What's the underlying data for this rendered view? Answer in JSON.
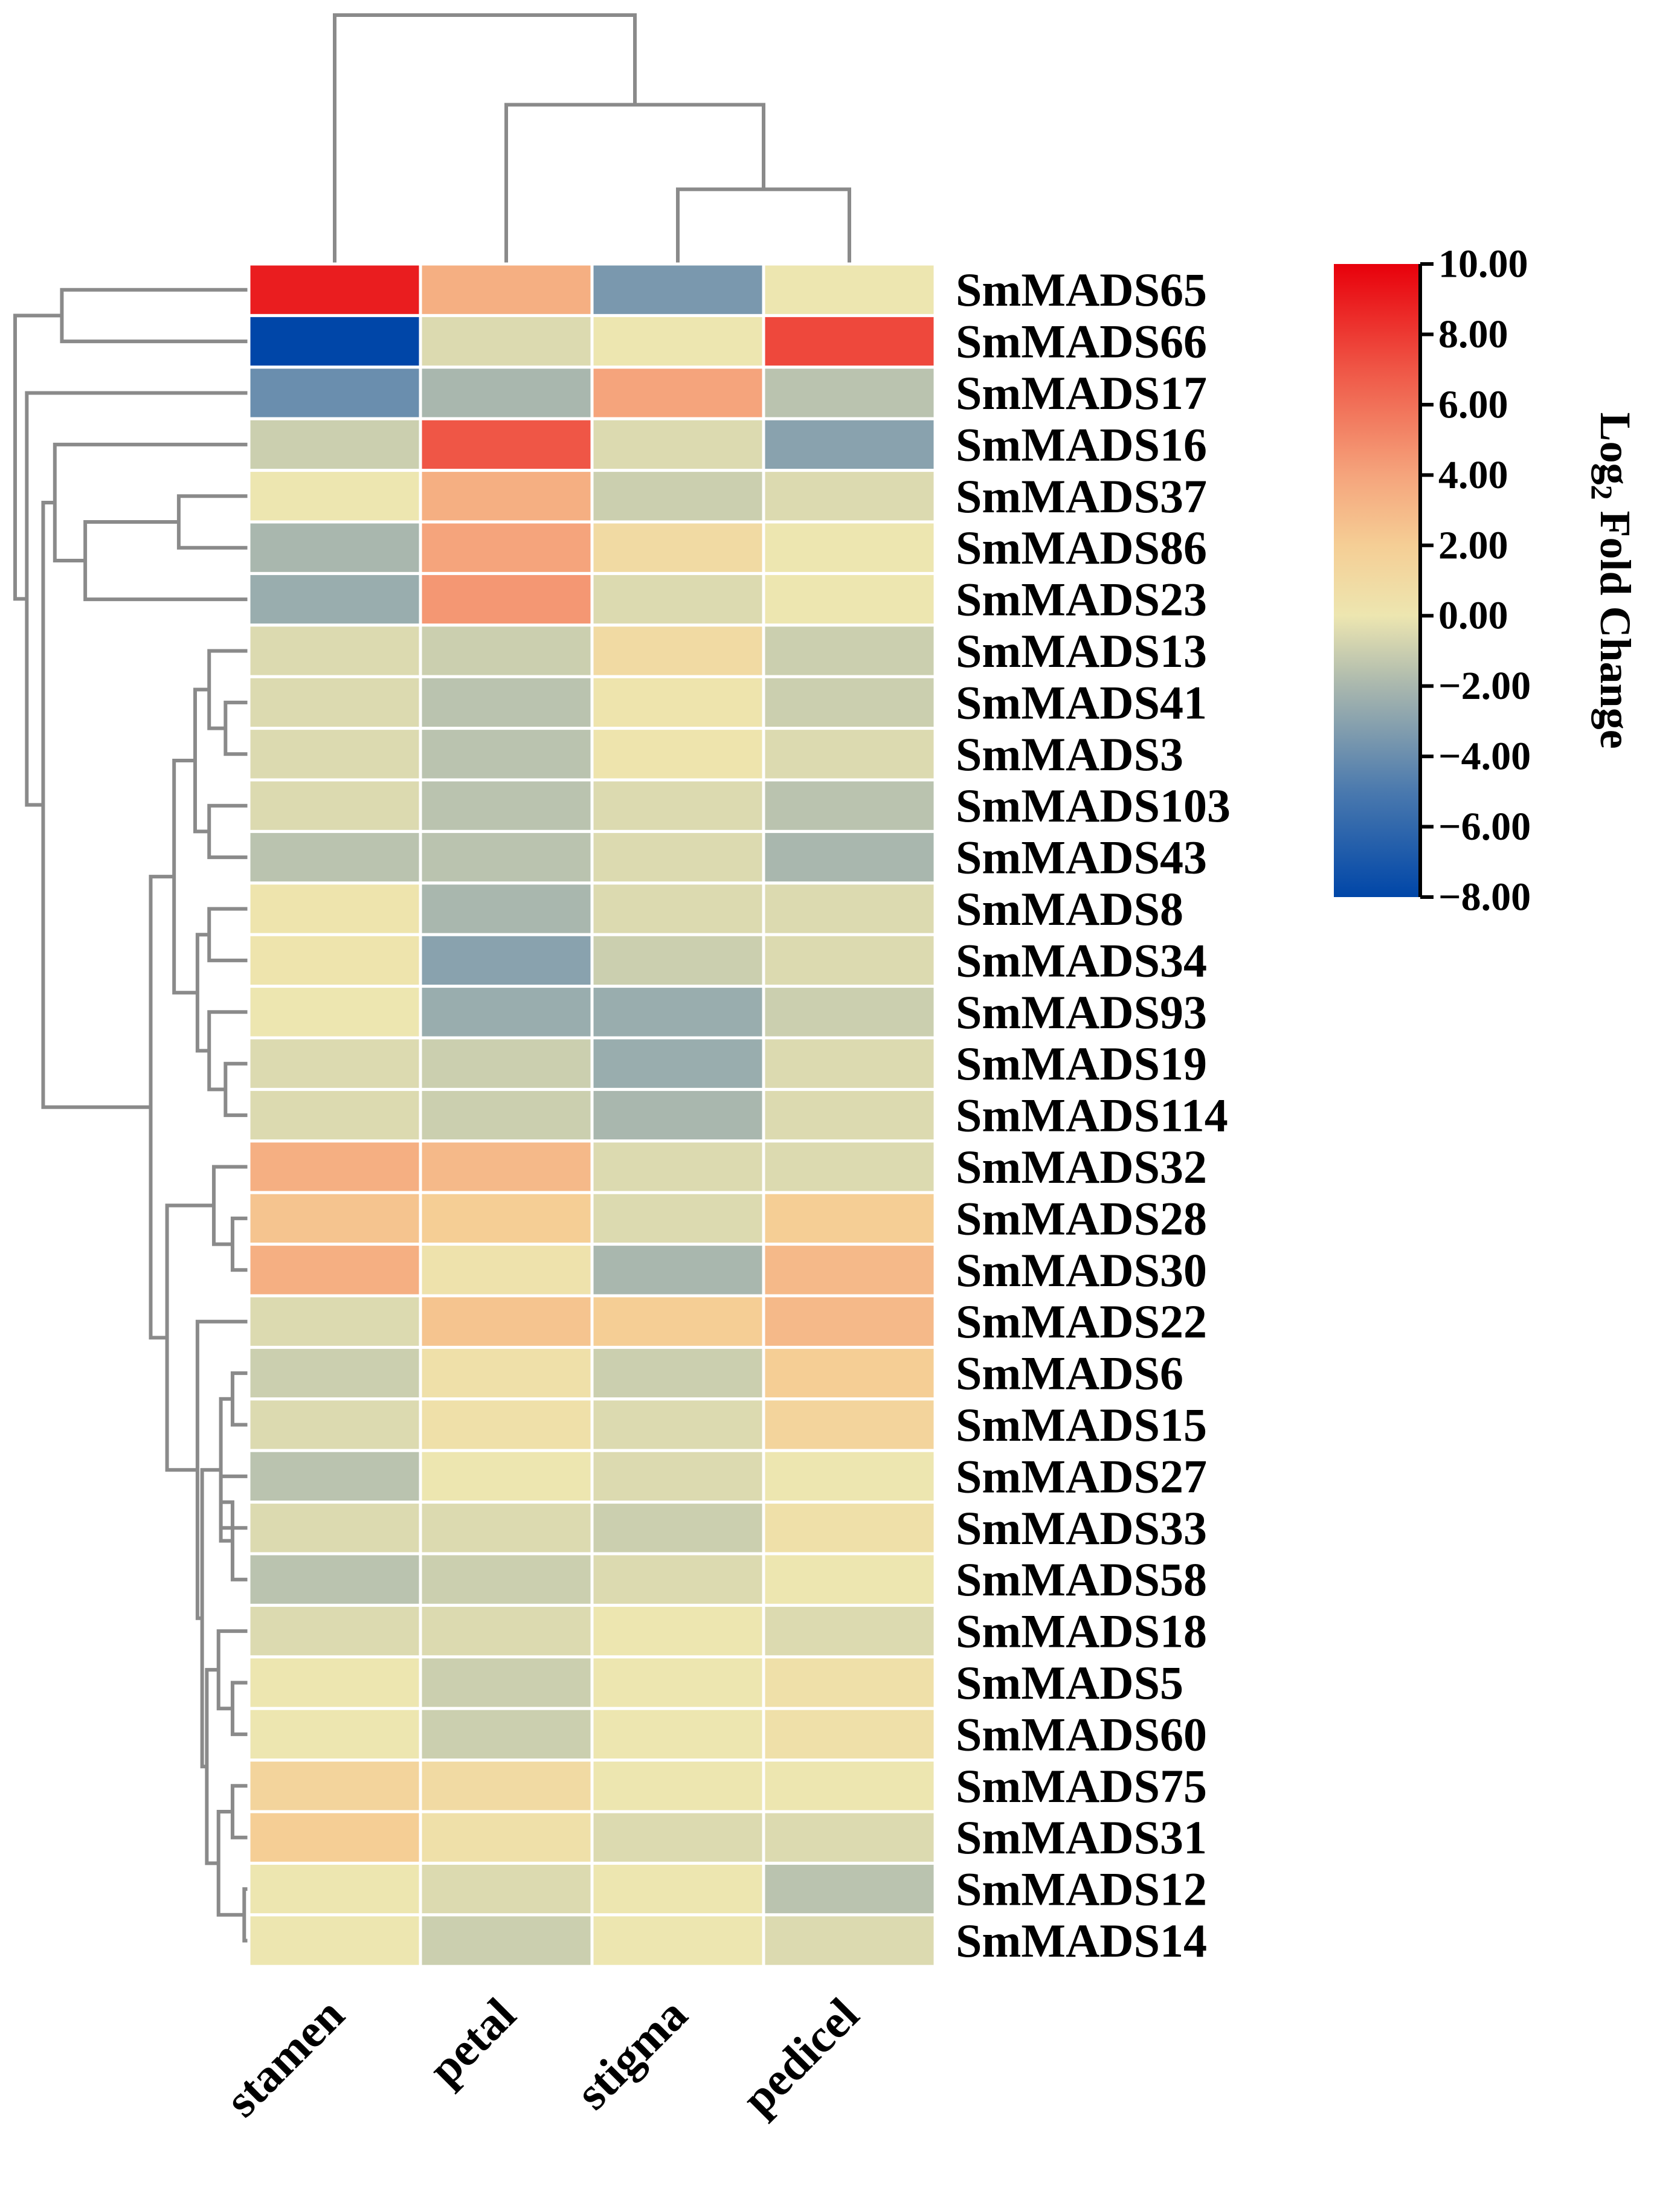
{
  "chart_data": {
    "type": "heatmap",
    "title": "",
    "colorbar": {
      "label": "Log",
      "label_subscript": "2",
      "label_suffix": " Fold Change",
      "min": -8.0,
      "max": 10.0,
      "ticks": [
        "10.00",
        "8.00",
        "6.00",
        "4.00",
        "2.00",
        "0.00",
        "−2.00",
        "−4.00",
        "−6.00",
        "−8.00"
      ],
      "tick_values": [
        10,
        8,
        6,
        4,
        2,
        0,
        -2,
        -4,
        -6,
        -8
      ],
      "stops": [
        {
          "v": -8,
          "c": "#0046a8"
        },
        {
          "v": -5,
          "c": "#4a79ae"
        },
        {
          "v": -2,
          "c": "#a9b7ae"
        },
        {
          "v": 0,
          "c": "#ede6b0"
        },
        {
          "v": 2,
          "c": "#f5ce95"
        },
        {
          "v": 4,
          "c": "#f5a47c"
        },
        {
          "v": 7,
          "c": "#ef5646"
        },
        {
          "v": 10,
          "c": "#e8000b"
        }
      ]
    },
    "columns": [
      "stamen",
      "petal",
      "stigma",
      "pedicel"
    ],
    "rows": [
      "SmMADS65",
      "SmMADS66",
      "SmMADS17",
      "SmMADS16",
      "SmMADS37",
      "SmMADS86",
      "SmMADS23",
      "SmMADS13",
      "SmMADS41",
      "SmMADS3",
      "SmMADS103",
      "SmMADS43",
      "SmMADS8",
      "SmMADS34",
      "SmMADS93",
      "SmMADS19",
      "SmMADS114",
      "SmMADS32",
      "SmMADS28",
      "SmMADS30",
      "SmMADS22",
      "SmMADS6",
      "SmMADS15",
      "SmMADS27",
      "SmMADS33",
      "SmMADS58",
      "SmMADS18",
      "SmMADS5",
      "SmMADS60",
      "SmMADS75",
      "SmMADS31",
      "SmMADS12",
      "SmMADS14"
    ],
    "values": [
      [
        9.0,
        3.5,
        -3.5,
        0.0
      ],
      [
        -8.0,
        -0.5,
        0.0,
        7.5
      ],
      [
        -4.0,
        -2.0,
        4.0,
        -1.5
      ],
      [
        -1.0,
        7.0,
        -0.5,
        -3.0
      ],
      [
        0.0,
        3.5,
        -1.0,
        -0.5
      ],
      [
        -2.0,
        4.0,
        1.0,
        0.0
      ],
      [
        -2.5,
        4.5,
        -0.5,
        0.0
      ],
      [
        -0.5,
        -1.0,
        1.0,
        -1.0
      ],
      [
        -0.5,
        -1.5,
        0.2,
        -1.0
      ],
      [
        -0.5,
        -1.5,
        0.2,
        -0.5
      ],
      [
        -0.5,
        -1.5,
        -0.5,
        -1.5
      ],
      [
        -1.5,
        -1.5,
        -0.5,
        -2.0
      ],
      [
        0.2,
        -2.0,
        -0.5,
        -0.5
      ],
      [
        0.2,
        -3.0,
        -1.0,
        -0.5
      ],
      [
        0.0,
        -2.5,
        -2.5,
        -1.0
      ],
      [
        -0.5,
        -1.0,
        -2.5,
        -0.5
      ],
      [
        -0.5,
        -1.0,
        -2.0,
        -0.5
      ],
      [
        3.5,
        3.0,
        -0.5,
        -0.5
      ],
      [
        2.5,
        2.0,
        -0.5,
        2.0
      ],
      [
        3.5,
        0.3,
        -2.0,
        3.0
      ],
      [
        -0.5,
        2.5,
        2.0,
        3.0
      ],
      [
        -1.0,
        0.5,
        -1.0,
        2.0
      ],
      [
        -0.5,
        0.5,
        -0.5,
        1.5
      ],
      [
        -1.5,
        0.0,
        -0.5,
        0.0
      ],
      [
        -0.5,
        -0.5,
        -1.0,
        0.5
      ],
      [
        -1.5,
        -1.0,
        -0.5,
        0.0
      ],
      [
        -0.5,
        -0.5,
        0.0,
        -0.5
      ],
      [
        0.0,
        -1.0,
        0.0,
        0.5
      ],
      [
        0.0,
        -1.0,
        0.0,
        0.5
      ],
      [
        1.5,
        1.0,
        0.0,
        0.0
      ],
      [
        2.0,
        0.5,
        -0.5,
        -0.5
      ],
      [
        0.0,
        -0.5,
        0.0,
        -1.5
      ],
      [
        0.0,
        -1.0,
        0.0,
        -0.5
      ]
    ],
    "row_dendrogram": [
      {
        "a": 0,
        "b": 1,
        "h": 0.8
      },
      {
        "a": 4,
        "b": 5,
        "h": 0.3
      },
      {
        "a": 34,
        "b": 6,
        "h": 0.7
      },
      {
        "a": 3,
        "b": 35,
        "h": 0.83
      },
      {
        "a": 8,
        "b": 9,
        "h": 0.1
      },
      {
        "a": 7,
        "b": 37,
        "h": 0.17
      },
      {
        "a": 10,
        "b": 11,
        "h": 0.17
      },
      {
        "a": 38,
        "b": 39,
        "h": 0.23
      },
      {
        "a": 12,
        "b": 13,
        "h": 0.17
      },
      {
        "a": 15,
        "b": 16,
        "h": 0.1
      },
      {
        "a": 14,
        "b": 42,
        "h": 0.17
      },
      {
        "a": 41,
        "b": 43,
        "h": 0.22
      },
      {
        "a": 40,
        "b": 44,
        "h": 0.32
      },
      {
        "a": 18,
        "b": 19,
        "h": 0.07
      },
      {
        "a": 17,
        "b": 46,
        "h": 0.15
      },
      {
        "a": 21,
        "b": 22,
        "h": 0.07
      },
      {
        "a": 23,
        "b": 24,
        "h": 0.12
      },
      {
        "a": 49,
        "b": 25,
        "h": 0.07
      },
      {
        "a": 48,
        "b": 50,
        "h": 0.12
      },
      {
        "a": 27,
        "b": 28,
        "h": 0.07
      },
      {
        "a": 26,
        "b": 52,
        "h": 0.13
      },
      {
        "a": 29,
        "b": 30,
        "h": 0.07
      },
      {
        "a": 31,
        "b": 32,
        "h": 0.02
      },
      {
        "a": 54,
        "b": 55,
        "h": 0.13
      },
      {
        "a": 53,
        "b": 56,
        "h": 0.18
      },
      {
        "a": 51,
        "b": 57,
        "h": 0.2
      },
      {
        "a": 20,
        "b": 58,
        "h": 0.22
      },
      {
        "a": 47,
        "b": 59,
        "h": 0.35
      },
      {
        "a": 45,
        "b": 60,
        "h": 0.42
      },
      {
        "a": 36,
        "b": 61,
        "h": 0.88
      },
      {
        "a": 2,
        "b": 62,
        "h": 0.95
      },
      {
        "a": 33,
        "b": 63,
        "h": 1.0
      }
    ],
    "col_dendrogram": [
      {
        "a": 2,
        "b": 3,
        "h": 0.3
      },
      {
        "a": 1,
        "b": 4,
        "h": 0.64
      },
      {
        "a": 0,
        "b": 5,
        "h": 1.0
      }
    ]
  }
}
